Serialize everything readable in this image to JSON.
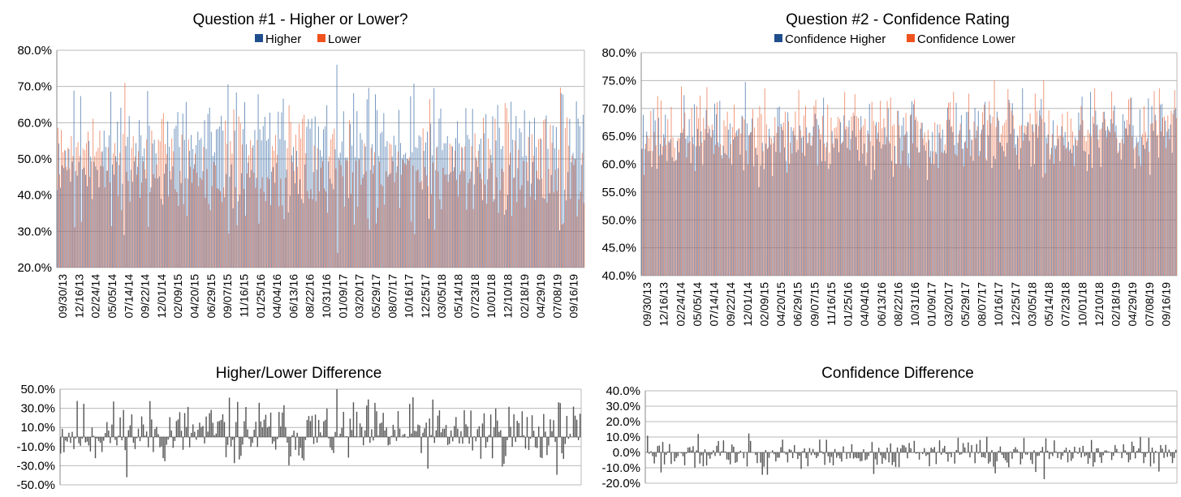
{
  "colors": {
    "higher": "#4a78ad",
    "lower": "#e8683e",
    "higher_swatch": "#1f4e8c",
    "lower_swatch": "#f0521e",
    "diff": "#555555",
    "grid": "#b8b8b8",
    "axis": "#888888"
  },
  "chart_data": [
    {
      "type": "bar",
      "title": "Question #1 - Higher or Lower?",
      "legend": [
        "Higher",
        "Lower"
      ],
      "legend_position": "top",
      "grid": true,
      "ylim": [
        0.2,
        0.8
      ],
      "yticks": [
        "20.0%",
        "30.0%",
        "40.0%",
        "50.0%",
        "60.0%",
        "70.0%",
        "80.0%"
      ],
      "x_labels": [
        "09/30/13",
        "12/16/13",
        "02/24/14",
        "05/05/14",
        "07/14/14",
        "09/22/14",
        "12/01/14",
        "02/09/15",
        "04/20/15",
        "06/29/15",
        "09/07/15",
        "11/16/15",
        "01/25/16",
        "04/04/16",
        "06/13/16",
        "08/22/16",
        "10/31/16",
        "01/09/17",
        "03/20/17",
        "05/29/17",
        "08/07/17",
        "10/16/17",
        "12/25/17",
        "03/05/18",
        "05/14/18",
        "07/23/18",
        "10/01/18",
        "12/10/18",
        "02/18/19",
        "04/29/19",
        "07/08/19",
        "09/16/19"
      ],
      "series": [
        {
          "name": "Higher",
          "mean": 0.52,
          "spread": 0.12,
          "seed": 11
        },
        {
          "name": "Lower",
          "derived": "1 - Higher"
        }
      ]
    },
    {
      "type": "bar",
      "title": "Question #2 - Confidence Rating",
      "legend": [
        "Confidence Higher",
        "Confidence Lower"
      ],
      "legend_position": "top",
      "grid": true,
      "ylim": [
        0.4,
        0.8
      ],
      "yticks": [
        "40.0%",
        "45.0%",
        "50.0%",
        "55.0%",
        "60.0%",
        "65.0%",
        "70.0%",
        "75.0%",
        "80.0%"
      ],
      "x_labels": [
        "09/30/13",
        "12/16/13",
        "02/24/14",
        "05/05/14",
        "07/14/14",
        "09/22/14",
        "12/01/14",
        "02/09/15",
        "04/20/15",
        "06/29/15",
        "09/07/15",
        "11/16/15",
        "01/25/16",
        "04/04/16",
        "06/13/16",
        "08/22/16",
        "10/31/16",
        "01/09/17",
        "03/20/17",
        "05/29/17",
        "08/07/17",
        "10/16/17",
        "12/25/17",
        "03/05/18",
        "05/14/18",
        "07/23/18",
        "10/01/18",
        "12/10/18",
        "02/18/19",
        "04/29/19",
        "07/08/19",
        "09/16/19"
      ],
      "series": [
        {
          "name": "Confidence Higher",
          "mean": 0.65,
          "spread": 0.05,
          "seed": 23
        },
        {
          "name": "Confidence Lower",
          "mean": 0.66,
          "spread": 0.05,
          "seed": 37
        }
      ]
    },
    {
      "type": "bar",
      "title": "Higher/Lower Difference",
      "grid": true,
      "ylim": [
        -0.5,
        0.5
      ],
      "yticks": [
        "-50.0%",
        "-30.0%",
        "-10.0%",
        "10.0%",
        "30.0%",
        "50.0%"
      ],
      "series": [
        {
          "derived": "Higher - Lower"
        }
      ]
    },
    {
      "type": "bar",
      "title": "Confidence Difference",
      "grid": true,
      "ylim": [
        -0.2,
        0.4
      ],
      "yticks": [
        "-20.0%",
        "-10.0%",
        "0.0%",
        "10.0%",
        "20.0%",
        "30.0%",
        "40.0%"
      ],
      "series": [
        {
          "derived": "Confidence Higher - Confidence Lower"
        }
      ]
    }
  ],
  "n_points": 315
}
